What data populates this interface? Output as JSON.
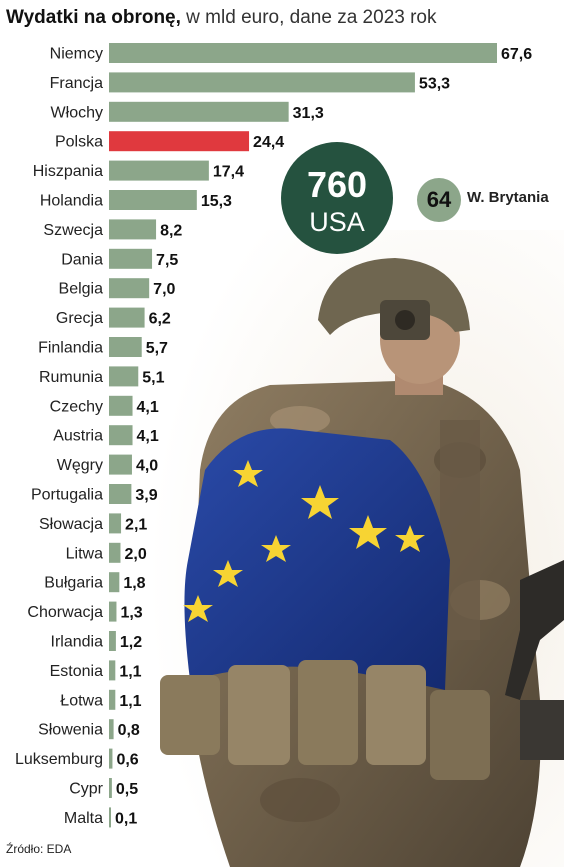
{
  "title": {
    "bold": "Wydatki na obronę,",
    "rest": " w mld euro, dane za 2023 rok"
  },
  "source": "Źródło: EDA",
  "colors": {
    "bar": "#8ca68a",
    "highlight": "#e0393e",
    "badge_dark": "#25523f",
    "badge_light": "#8ca68a"
  },
  "callouts": {
    "usa": {
      "value": "760",
      "label": "USA"
    },
    "uk": {
      "value": "64",
      "label": "W. Brytania"
    }
  },
  "chart_data": {
    "type": "bar",
    "orientation": "horizontal",
    "title": "Wydatki na obronę, w mld euro, dane za 2023 rok",
    "highlighted_category": "Polska",
    "categories": [
      "Niemcy",
      "Francja",
      "Włochy",
      "Polska",
      "Hiszpania",
      "Holandia",
      "Szwecja",
      "Dania",
      "Belgia",
      "Grecja",
      "Finlandia",
      "Rumunia",
      "Czechy",
      "Austria",
      "Węgry",
      "Portugalia",
      "Słowacja",
      "Litwa",
      "Bułgaria",
      "Chorwacja",
      "Irlandia",
      "Estonia",
      "Łotwa",
      "Słowenia",
      "Luksemburg",
      "Cypr",
      "Malta"
    ],
    "values": [
      67.6,
      53.3,
      31.3,
      24.4,
      17.4,
      15.3,
      8.2,
      7.5,
      7.0,
      6.2,
      5.7,
      5.1,
      4.1,
      4.1,
      4.0,
      3.9,
      2.1,
      2.0,
      1.8,
      1.3,
      1.2,
      1.1,
      1.1,
      0.8,
      0.6,
      0.5,
      0.1
    ],
    "value_labels": [
      "67,6",
      "53,3",
      "31,3",
      "24,4",
      "17,4",
      "15,3",
      "8,2",
      "7,5",
      "7,0",
      "6,2",
      "5,7",
      "5,1",
      "4,1",
      "4,1",
      "4,0",
      "3,9",
      "2,1",
      "2,0",
      "1,8",
      "1,3",
      "1,2",
      "1,1",
      "1,1",
      "0,8",
      "0,6",
      "0,5",
      "0,1"
    ],
    "xlim": [
      0,
      67.6
    ],
    "grid": false,
    "legend": "none"
  }
}
